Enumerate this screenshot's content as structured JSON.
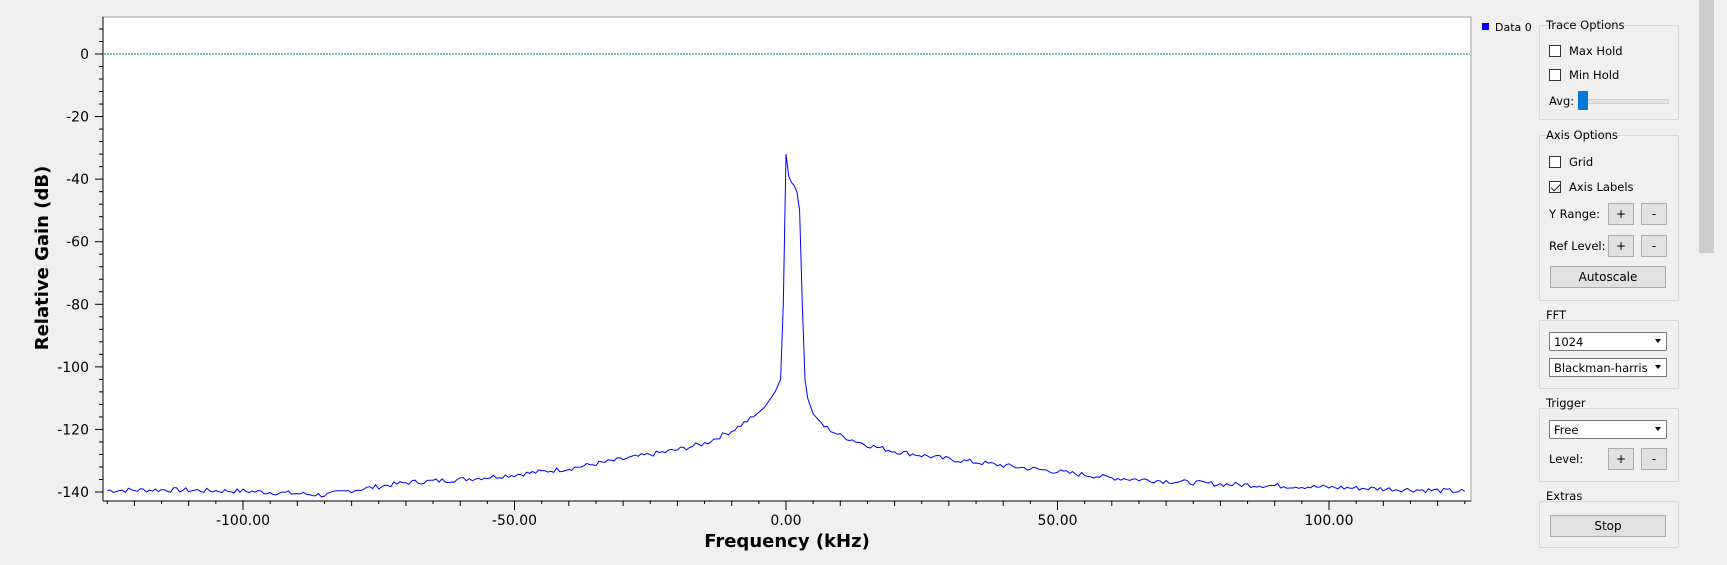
{
  "chart_data": {
    "type": "line",
    "xlabel": "Frequency (kHz)",
    "ylabel": "Relative Gain (dB)",
    "xlim": [
      -125,
      125
    ],
    "ylim": [
      -140,
      12
    ],
    "xticks": [
      -100,
      -50,
      0,
      50,
      100
    ],
    "xtick_labels": [
      "-100.00",
      "-50.00",
      "0.00",
      "50.00",
      "100.00"
    ],
    "yticks": [
      0,
      -20,
      -40,
      -60,
      -80,
      -100,
      -120,
      -140
    ],
    "ytick_labels": [
      "0",
      "-20",
      "-40",
      "-60",
      "-80",
      "-100",
      "-120",
      "-140"
    ],
    "reference_line": 0,
    "grid": false,
    "legend": "top-right",
    "series": [
      {
        "name": "Data 0",
        "color": "#0000ff",
        "x": [
          -125,
          -115,
          -105,
          -100,
          -90,
          -85,
          -80,
          -70,
          -60,
          -50,
          -40,
          -30,
          -20,
          -15,
          -10,
          -6,
          -4,
          -2,
          -1,
          -0.5,
          0,
          0.5,
          1,
          1.5,
          2,
          2.5,
          3,
          3.5,
          4,
          5,
          7,
          10,
          15,
          20,
          30,
          40,
          50,
          60,
          70,
          80,
          90,
          100,
          110,
          125
        ],
        "y": [
          -139.5,
          -139.3,
          -139.6,
          -139.7,
          -140.5,
          -141,
          -139.5,
          -137,
          -136,
          -134.5,
          -132.5,
          -129.5,
          -126.5,
          -124.5,
          -120.5,
          -116,
          -113,
          -108,
          -104,
          -80,
          -32,
          -39,
          -41,
          -42,
          -44,
          -50,
          -80,
          -104,
          -110,
          -115,
          -119,
          -122,
          -125,
          -127,
          -129.5,
          -131.5,
          -133.5,
          -135.5,
          -136.5,
          -137.5,
          -138,
          -138.5,
          -139,
          -139.8
        ]
      }
    ]
  },
  "trace_options": {
    "title": "Trace Options",
    "max_hold": {
      "label": "Max Hold",
      "checked": false
    },
    "min_hold": {
      "label": "Min Hold",
      "checked": false
    },
    "avg_label": "Avg:",
    "avg_value": 0
  },
  "axis_options": {
    "title": "Axis Options",
    "grid": {
      "label": "Grid",
      "checked": false
    },
    "axis_labels": {
      "label": "Axis Labels",
      "checked": true
    },
    "y_range_label": "Y Range:",
    "ref_level_label": "Ref Level:",
    "plus": "+",
    "minus": "-",
    "autoscale": "Autoscale"
  },
  "fft": {
    "title": "FFT",
    "size": "1024",
    "window": "Blackman-harris"
  },
  "trigger": {
    "title": "Trigger",
    "mode": "Free",
    "level_label": "Level:",
    "plus": "+",
    "minus": "-"
  },
  "extras": {
    "title": "Extras",
    "stop": "Stop"
  }
}
